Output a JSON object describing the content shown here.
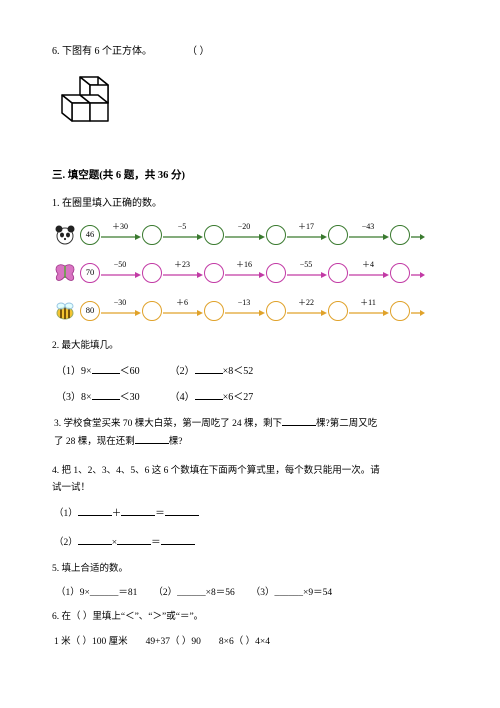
{
  "pre_question": {
    "text": "6. 下图有 6 个正方体。",
    "paren": "（    ）"
  },
  "section_title": "三. 填空题(共 6 题，共 36 分)",
  "q1": {
    "title": "1. 在圈里填入正确的数。",
    "rows": [
      {
        "start": "46",
        "color": "#3a7a2f",
        "ops": [
          "＋30",
          "−5",
          "−20",
          "＋17",
          "−43"
        ]
      },
      {
        "start": "70",
        "color": "#c23aa5",
        "ops": [
          "−50",
          "＋23",
          "＋16",
          "−55",
          "＋4"
        ]
      },
      {
        "start": "80",
        "color": "#e0a22a",
        "ops": [
          "−30",
          "＋6",
          "−13",
          "＋22",
          "＋11"
        ]
      }
    ]
  },
  "q2": {
    "title": "2. 最大能填几。",
    "items": [
      {
        "a": "（1）9×",
        "b": "＜60"
      },
      {
        "a": "（2）",
        "b": "×8＜52"
      },
      {
        "a": "（3）8×",
        "b": "＜30"
      },
      {
        "a": "（4）",
        "b": "×6＜27"
      }
    ]
  },
  "q3": {
    "line1a": "3. 学校食堂买来 70 棵大白菜，第一周吃了 24 棵，剩下",
    "line1b": "棵?第二周又吃",
    "line2a": "了 28 棵，现在还剩",
    "line2b": "棵?"
  },
  "q4": {
    "line1": "4. 把 1、2、3、4、5、6 这 6 个数填在下面两个算式里，每个数只能用一次。请",
    "line2": "试一试！",
    "eq1": {
      "l": "（1）",
      "op": "＋",
      "eq": "＝"
    },
    "eq2": {
      "l": "（2）",
      "op": "×",
      "eq": "＝"
    }
  },
  "q5": {
    "title": "5. 填上合适的数。",
    "items": [
      "（1）9×______＝81",
      "（2）______×8＝56",
      "（3）______×9＝54"
    ]
  },
  "q6": {
    "title": "6. 在（    ）里填上“＜”、“＞”或“＝”。",
    "items": [
      "1 米（    ）100 厘米",
      "49+37（    ）90",
      "8×6（    ）4×4"
    ]
  }
}
